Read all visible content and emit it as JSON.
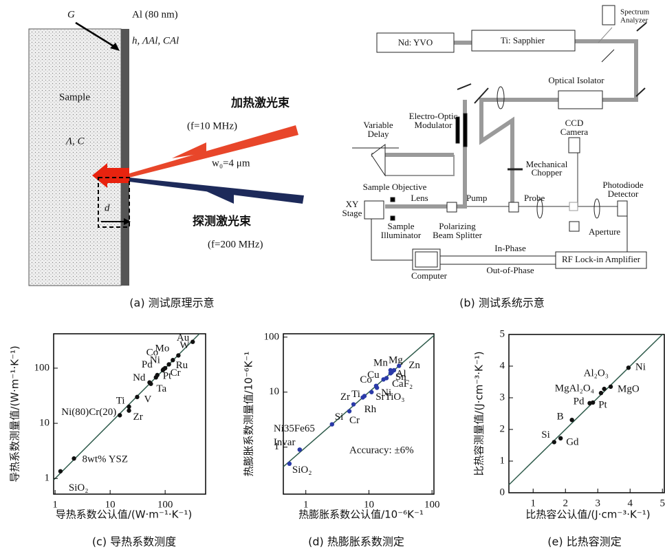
{
  "diagram_a": {
    "caption": "(a) 测试原理示意",
    "g": "G",
    "al_layer": "Al (80 nm)",
    "al_params": "h, ΛAl, CAl",
    "sample": "Sample",
    "sample_params": "Λ, C",
    "heating_beam": "加热激光束",
    "heating_freq": "(f=10 MHz)",
    "spot_size": "w₀=4 μm",
    "probe_beam": "探测激光束",
    "probe_freq": "(f=200 MHz)",
    "depth": "d"
  },
  "diagram_b": {
    "caption": "(b) 测试系统示意",
    "spectrum_analyzer": [
      "Spectrum",
      "Analyzer"
    ],
    "laser": "Nd: YVO",
    "oscillator": "Ti: Sapphier",
    "isolator": "Optical Isolator",
    "delay": [
      "Variable",
      "Delay"
    ],
    "modulator": [
      "Electro-Optic",
      "Modulator"
    ],
    "camera": [
      "CCD",
      "Camera"
    ],
    "chopper": [
      "Mechanical",
      "Chopper"
    ],
    "objective": "Sample Objective",
    "lens": "Lens",
    "stage": [
      "XY",
      "Stage"
    ],
    "pump": "Pump",
    "probe": "Probe",
    "detector": [
      "Photodiode",
      "Detector"
    ],
    "illuminator": [
      "Sample",
      "Illuminator"
    ],
    "splitter": [
      "Polarizing",
      "Beam Splitter"
    ],
    "aperture": "Aperture",
    "in_phase": "In-Phase",
    "out_phase": "Out-of-Phase",
    "amplifier": "RF Lock-in Amplifier",
    "computer": "Computer"
  },
  "chart_data": [
    {
      "type": "scatter",
      "caption": "(c) 导热系数测度",
      "log": true,
      "x_label": "导热系数公认值/(W·m⁻¹·K⁻¹)",
      "y_label": "导热系数测量值/(W·m⁻¹·K⁻¹)",
      "xlim": [
        0.94,
        560
      ],
      "ylim": [
        0.52,
        420
      ],
      "xticks": [
        1,
        10,
        100
      ],
      "yticks": [
        1,
        10,
        100
      ],
      "series": [
        {
          "color": "#111111",
          "labels": [
            "SiO₂",
            "8wt% YSZ",
            "Ni(80)Cr(20)",
            "Zr",
            "Ti",
            "V",
            "Ta",
            "Nd",
            "Pd",
            "Pt",
            "Cr",
            "Ni",
            "Co",
            "Mo",
            "W",
            "Ru",
            "Au"
          ],
          "x": [
            1.25,
            2.2,
            15,
            22,
            22,
            31,
            55,
            52,
            68,
            72,
            93,
            91,
            100,
            138,
            174,
            117,
            317
          ],
          "values": [
            1.35,
            2.3,
            14,
            17,
            20,
            30,
            52,
            55,
            68,
            75,
            95,
            92,
            100,
            140,
            170,
            117,
            300
          ]
        }
      ]
    },
    {
      "type": "scatter",
      "caption": "(d) 热膨胀系数测定",
      "log": true,
      "x_label": "热膨胀系数公认值/10⁻⁶K⁻¹",
      "y_label": "热膨胀系数测量值/10⁻⁶K⁻¹",
      "annotation": "Accuracy: ±6%",
      "xlim": [
        0.44,
        110
      ],
      "ylim": [
        0.14,
        115
      ],
      "xticks": [
        1,
        10,
        100
      ],
      "yticks": [
        1,
        10,
        100
      ],
      "series": [
        {
          "color": "#2a3aa8",
          "labels": [
            "SiO₂",
            "Invar",
            "Ni35Fe65",
            "Si",
            "Cr",
            "Zr",
            "Rh",
            "Ti",
            "SrTiO₃",
            "Co",
            "Ni",
            "Cu",
            "CaF₂",
            "Sn",
            "Mn",
            "Al",
            "Mg",
            "Zn"
          ],
          "x": [
            0.55,
            0.8,
            0.8,
            2.6,
            4.9,
            5.7,
            8,
            8.5,
            11,
            13,
            13.4,
            17,
            19,
            22,
            22,
            23,
            25,
            30
          ],
          "values": [
            0.5,
            0.9,
            0.9,
            2.6,
            4.5,
            6,
            8,
            8.5,
            10,
            13,
            12,
            17,
            18,
            22,
            25,
            23,
            25,
            30
          ]
        }
      ]
    },
    {
      "type": "scatter",
      "caption": "(e) 比热容测定",
      "log": false,
      "x_label": "比热容公认值/(J·cm⁻³·K⁻¹)",
      "y_label": "比热容测量值/(J·cm⁻³·K⁻¹)",
      "xlim": [
        0.25,
        5.08
      ],
      "ylim": [
        0,
        5
      ],
      "xticks": [
        1,
        2,
        3,
        4,
        5
      ],
      "yticks": [
        0,
        1,
        2,
        3,
        4,
        5
      ],
      "series": [
        {
          "color": "#111111",
          "labels": [
            "Si",
            "Gd",
            "B",
            "Pd",
            "Pt",
            "MgAl₂O₄",
            "Al₂O₃",
            "MgO",
            "Ni"
          ],
          "x": [
            1.65,
            1.85,
            2.2,
            2.75,
            2.85,
            3.1,
            3.2,
            3.4,
            3.95
          ],
          "values": [
            1.6,
            1.72,
            2.3,
            2.83,
            2.85,
            3.15,
            3.28,
            3.35,
            3.95
          ]
        }
      ]
    }
  ]
}
